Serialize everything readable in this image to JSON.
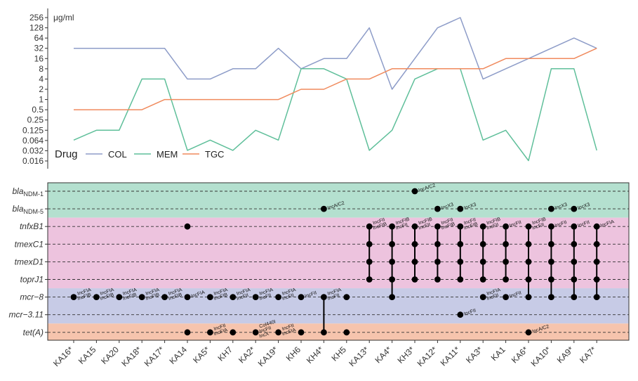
{
  "chart_data": [
    {
      "type": "line",
      "unit_label": "μg/ml",
      "legend_title": "Drug",
      "scale": "log2",
      "y_ticks": [
        "256",
        "128",
        "64",
        "32",
        "16",
        "8",
        "4",
        "2",
        "1",
        "0.5",
        "0.25",
        "0.125",
        "0.064",
        "0.032",
        "0.016"
      ],
      "categories": [
        "KA16*",
        "KA15",
        "KA20",
        "KA18*",
        "KA17*",
        "KA14",
        "KA5*",
        "KH7",
        "KA2*",
        "KA19*",
        "KH6",
        "KH4*",
        "KH5",
        "KA13*",
        "KA4*",
        "KH3*",
        "KA12*",
        "KA11*",
        "KA3*",
        "KA1",
        "KA6*",
        "KA10*",
        "KA9*",
        "KA7*"
      ],
      "series": [
        {
          "name": "COL",
          "color": "#8d9cc8",
          "values": [
            32,
            32,
            32,
            32,
            32,
            4,
            4,
            8,
            8,
            32,
            8,
            16,
            16,
            128,
            2,
            16,
            128,
            256,
            4,
            8,
            16,
            32,
            64,
            32
          ]
        },
        {
          "name": "MEM",
          "color": "#5fbf9a",
          "values": [
            0.064,
            0.125,
            0.125,
            4,
            4,
            0.032,
            0.064,
            0.032,
            0.125,
            0.064,
            8,
            8,
            4,
            0.032,
            0.125,
            4,
            8,
            8,
            0.064,
            0.125,
            0.016,
            8,
            8,
            0.032
          ]
        },
        {
          "name": "TGC",
          "color": "#f08a5d",
          "values": [
            0.5,
            0.5,
            0.5,
            0.5,
            1,
            1,
            1,
            1,
            1,
            1,
            2,
            2,
            4,
            4,
            8,
            8,
            8,
            8,
            8,
            16,
            16,
            16,
            16,
            32
          ]
        }
      ]
    },
    {
      "type": "matrix",
      "genes": [
        {
          "id": "bla1",
          "base": "bla",
          "sub": "NDM-1"
        },
        {
          "id": "bla5",
          "base": "bla",
          "sub": "NDM-5"
        },
        {
          "id": "tnfxB1",
          "base": "tnfxB1",
          "sub": ""
        },
        {
          "id": "tmexC1",
          "base": "tmexC1",
          "sub": ""
        },
        {
          "id": "tmexD1",
          "base": "tmexD1",
          "sub": ""
        },
        {
          "id": "toprJ1",
          "base": "toprJ1",
          "sub": ""
        },
        {
          "id": "mcr8",
          "base": "mcr−8",
          "sub": ""
        },
        {
          "id": "mcr311",
          "base": "mcr−3.11",
          "sub": ""
        },
        {
          "id": "tetA",
          "base": "tet(A)",
          "sub": ""
        }
      ],
      "bands": [
        {
          "rows": [
            0,
            1
          ],
          "color": "#b4e0cf"
        },
        {
          "rows": [
            2,
            5
          ],
          "color": "#edc3de"
        },
        {
          "rows": [
            6,
            7
          ],
          "color": "#c7cbe6"
        },
        {
          "rows": [
            8,
            8
          ],
          "color": "#f6c4ad"
        }
      ],
      "cells": [
        {
          "col": 0,
          "row": 6,
          "label": "IncFIA\nIncFIB"
        },
        {
          "col": 1,
          "row": 6,
          "label": "IncFIA\nIncFIB"
        },
        {
          "col": 2,
          "row": 6,
          "label": "IncFIA\nIncFIB"
        },
        {
          "col": 3,
          "row": 6,
          "label": "IncFIA\nIncFIB"
        },
        {
          "col": 4,
          "row": 6,
          "label": "IncFIA\nIncFIB"
        },
        {
          "col": 5,
          "row": 2,
          "label": ""
        },
        {
          "col": 5,
          "row": 6,
          "label": "IncFIA"
        },
        {
          "col": 5,
          "row": 8,
          "label": ""
        },
        {
          "col": 6,
          "row": 6,
          "label": "IncFIA\nIncFIB"
        },
        {
          "col": 6,
          "row": 8,
          "label": "IncFII\nIncFIA"
        },
        {
          "col": 7,
          "row": 6,
          "label": "IncFIA\nIncFII"
        },
        {
          "col": 7,
          "row": 8,
          "label": ""
        },
        {
          "col": 8,
          "row": 6,
          "label": "IncFIA\nIncFII"
        },
        {
          "col": 8,
          "row": 8,
          "label": "Col440I\nIncFII\nIncX"
        },
        {
          "col": 9,
          "row": 6,
          "label": "IncFIA\nIncFII"
        },
        {
          "col": 9,
          "row": 8,
          "label": "IncFII\nIncFIA"
        },
        {
          "col": 10,
          "row": 6,
          "label": "IncFII"
        },
        {
          "col": 10,
          "row": 8,
          "label": ""
        },
        {
          "col": 11,
          "row": 1,
          "label": "IncA/C2"
        },
        {
          "col": 11,
          "row": 6,
          "label": "IncFIA\nIncFII"
        },
        {
          "col": 11,
          "row": 8,
          "label": ""
        },
        {
          "col": 12,
          "row": 6,
          "label": ""
        },
        {
          "col": 12,
          "row": 8,
          "label": ""
        },
        {
          "col": 13,
          "row": 2,
          "label": "IncFII\nIncFIB"
        },
        {
          "col": 13,
          "row": 3,
          "label": ""
        },
        {
          "col": 13,
          "row": 4,
          "label": ""
        },
        {
          "col": 13,
          "row": 5,
          "label": ""
        },
        {
          "col": 14,
          "row": 2,
          "label": "IncFIB\nIncFII"
        },
        {
          "col": 14,
          "row": 3,
          "label": ""
        },
        {
          "col": 14,
          "row": 4,
          "label": ""
        },
        {
          "col": 14,
          "row": 5,
          "label": ""
        },
        {
          "col": 14,
          "row": 6,
          "label": ""
        },
        {
          "col": 15,
          "row": 0,
          "label": "IncA/C2"
        },
        {
          "col": 15,
          "row": 2,
          "label": "IncFIB\nIncFII"
        },
        {
          "col": 15,
          "row": 3,
          "label": ""
        },
        {
          "col": 15,
          "row": 4,
          "label": ""
        },
        {
          "col": 15,
          "row": 5,
          "label": ""
        },
        {
          "col": 16,
          "row": 1,
          "label": "IncX3"
        },
        {
          "col": 16,
          "row": 2,
          "label": "IncFII\nIncFIB"
        },
        {
          "col": 16,
          "row": 3,
          "label": ""
        },
        {
          "col": 16,
          "row": 4,
          "label": ""
        },
        {
          "col": 16,
          "row": 5,
          "label": ""
        },
        {
          "col": 17,
          "row": 1,
          "label": "IncX3"
        },
        {
          "col": 17,
          "row": 2,
          "label": "IncFII\nIncFIB"
        },
        {
          "col": 17,
          "row": 3,
          "label": ""
        },
        {
          "col": 17,
          "row": 4,
          "label": ""
        },
        {
          "col": 17,
          "row": 5,
          "label": ""
        },
        {
          "col": 17,
          "row": 7,
          "label": "IncFII"
        },
        {
          "col": 18,
          "row": 2,
          "label": "IncFIB\nIncFII"
        },
        {
          "col": 18,
          "row": 3,
          "label": ""
        },
        {
          "col": 18,
          "row": 4,
          "label": ""
        },
        {
          "col": 18,
          "row": 5,
          "label": ""
        },
        {
          "col": 18,
          "row": 6,
          "label": "IncFIA\nIncFII"
        },
        {
          "col": 19,
          "row": 2,
          "label": "IncFII"
        },
        {
          "col": 19,
          "row": 3,
          "label": ""
        },
        {
          "col": 19,
          "row": 4,
          "label": ""
        },
        {
          "col": 19,
          "row": 5,
          "label": ""
        },
        {
          "col": 19,
          "row": 6,
          "label": "IncFII"
        },
        {
          "col": 20,
          "row": 2,
          "label": "IncFIB\nIncFII"
        },
        {
          "col": 20,
          "row": 3,
          "label": ""
        },
        {
          "col": 20,
          "row": 4,
          "label": ""
        },
        {
          "col": 20,
          "row": 5,
          "label": ""
        },
        {
          "col": 20,
          "row": 6,
          "label": ""
        },
        {
          "col": 20,
          "row": 8,
          "label": "IncA/C2"
        },
        {
          "col": 21,
          "row": 1,
          "label": "IncX3"
        },
        {
          "col": 21,
          "row": 2,
          "label": "IncFII"
        },
        {
          "col": 21,
          "row": 3,
          "label": ""
        },
        {
          "col": 21,
          "row": 4,
          "label": ""
        },
        {
          "col": 21,
          "row": 5,
          "label": ""
        },
        {
          "col": 21,
          "row": 6,
          "label": ""
        },
        {
          "col": 22,
          "row": 1,
          "label": "IncX3"
        },
        {
          "col": 22,
          "row": 2,
          "label": "IncFII"
        },
        {
          "col": 22,
          "row": 3,
          "label": ""
        },
        {
          "col": 22,
          "row": 4,
          "label": ""
        },
        {
          "col": 22,
          "row": 5,
          "label": ""
        },
        {
          "col": 22,
          "row": 6,
          "label": ""
        },
        {
          "col": 23,
          "row": 2,
          "label": "IncFIA"
        },
        {
          "col": 23,
          "row": 3,
          "label": ""
        },
        {
          "col": 23,
          "row": 4,
          "label": ""
        },
        {
          "col": 23,
          "row": 5,
          "label": ""
        },
        {
          "col": 23,
          "row": 6,
          "label": ""
        }
      ],
      "links": [
        {
          "col": 11,
          "from": 6,
          "to": 8
        },
        {
          "col": 13,
          "from": 2,
          "to": 5
        },
        {
          "col": 14,
          "from": 2,
          "to": 6
        },
        {
          "col": 15,
          "from": 2,
          "to": 5
        },
        {
          "col": 16,
          "from": 2,
          "to": 5
        },
        {
          "col": 17,
          "from": 2,
          "to": 5
        },
        {
          "col": 18,
          "from": 2,
          "to": 5
        },
        {
          "col": 19,
          "from": 2,
          "to": 5
        },
        {
          "col": 20,
          "from": 2,
          "to": 6
        },
        {
          "col": 21,
          "from": 2,
          "to": 6
        },
        {
          "col": 22,
          "from": 2,
          "to": 6
        },
        {
          "col": 23,
          "from": 2,
          "to": 6
        }
      ]
    }
  ]
}
